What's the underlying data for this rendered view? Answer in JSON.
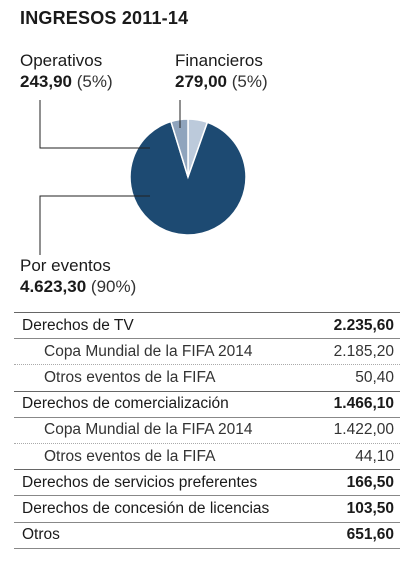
{
  "title": "INGRESOS 2011-14",
  "chart_data": {
    "type": "pie",
    "slices": [
      {
        "name": "Por eventos",
        "value": 4623.3,
        "value_label": "4.623,30",
        "pct_label": "(90%)",
        "color": "#1d4a72"
      },
      {
        "name": "Operativos",
        "value": 243.9,
        "value_label": "243,90",
        "pct_label": "(5%)",
        "color": "#8fa4bd"
      },
      {
        "name": "Financieros",
        "value": 279.0,
        "value_label": "279,00",
        "pct_label": "(5%)",
        "color": "#bccadb"
      }
    ]
  },
  "table": {
    "rows": [
      {
        "label": "Derechos de TV",
        "value": "2.235,60",
        "sub": false
      },
      {
        "label": "Copa Mundial de la FIFA 2014",
        "value": "2.185,20",
        "sub": true
      },
      {
        "label": "Otros eventos de la FIFA",
        "value": "50,40",
        "sub": true
      },
      {
        "label": "Derechos de comercialización",
        "value": "1.466,10",
        "sub": false
      },
      {
        "label": "Copa Mundial de la FIFA 2014",
        "value": "1.422,00",
        "sub": true
      },
      {
        "label": "Otros eventos de la FIFA",
        "value": "44,10",
        "sub": true
      },
      {
        "label": "Derechos de servicios preferentes",
        "value": "166,50",
        "sub": false
      },
      {
        "label": "Derechos de concesión de licencias",
        "value": "103,50",
        "sub": false
      },
      {
        "label": "Otros",
        "value": "651,60",
        "sub": false
      }
    ]
  }
}
